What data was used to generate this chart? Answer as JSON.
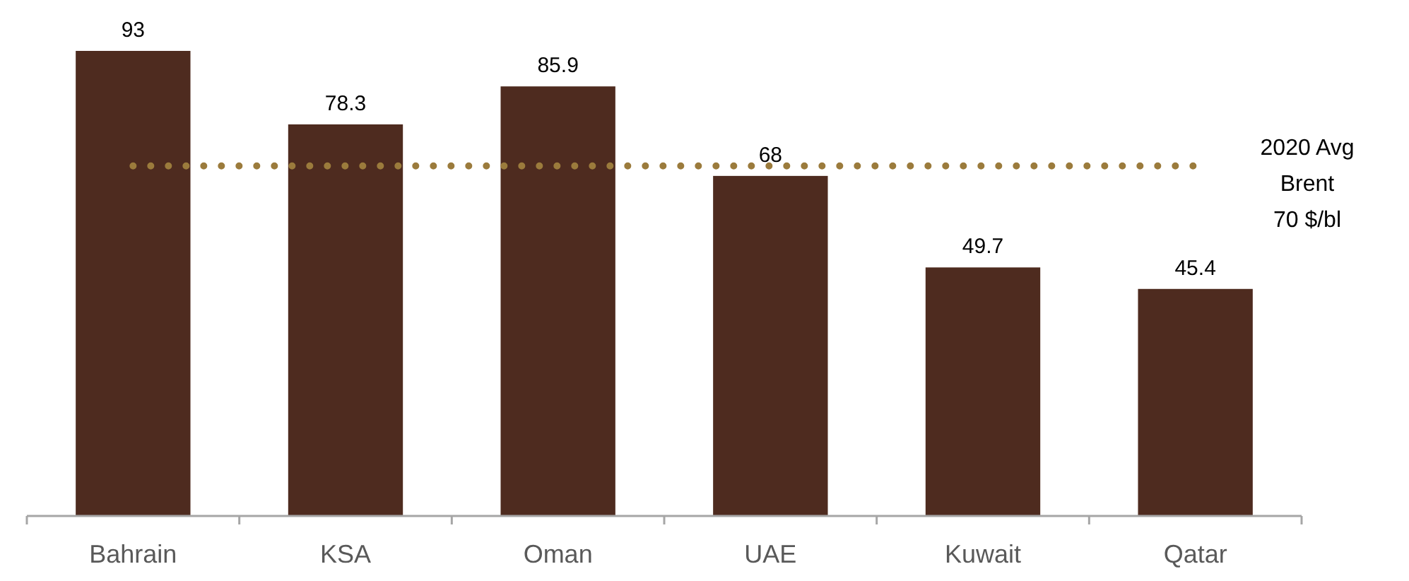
{
  "chart_data": {
    "type": "bar",
    "categories": [
      "Bahrain",
      "KSA",
      "Oman",
      "UAE",
      "Kuwait",
      "Qatar"
    ],
    "values": [
      93,
      78.3,
      85.9,
      68,
      49.7,
      45.4
    ],
    "color": "#4e2b1f",
    "data_labels": true,
    "tick_labels": "x",
    "ref_lines": [
      {
        "axis": "y",
        "value": 70,
        "label": "2020 Avg\nBrent\n70 $/bl",
        "color": "#9b7b3c",
        "line_style": "dotted"
      }
    ]
  }
}
